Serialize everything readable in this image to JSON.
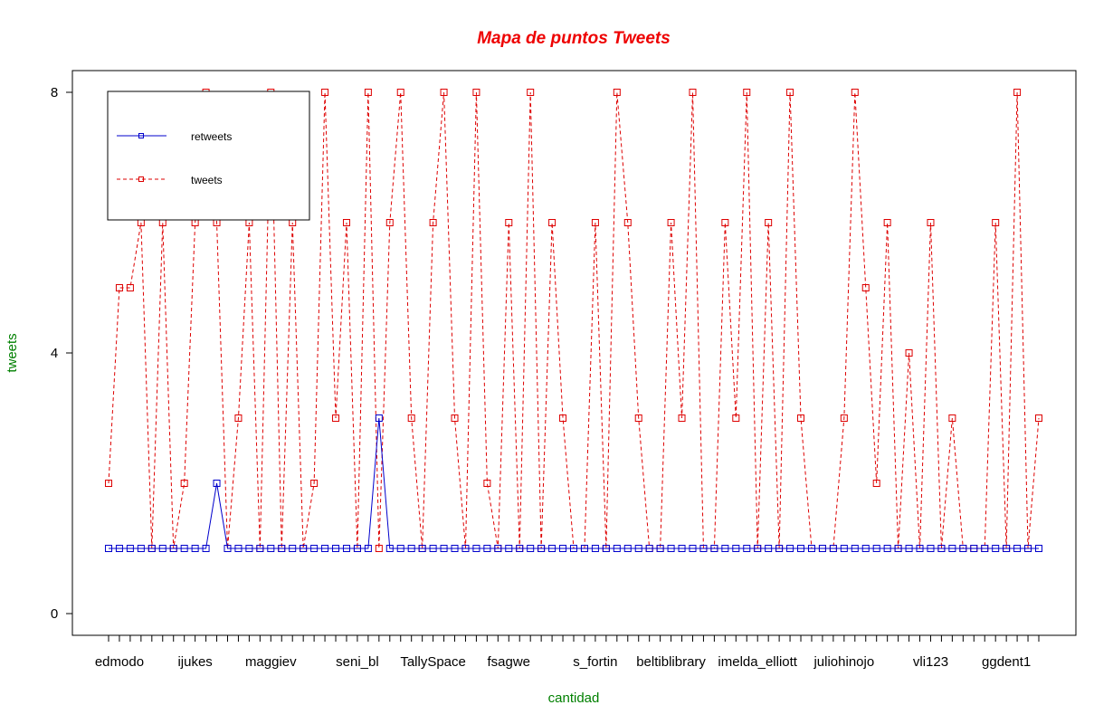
{
  "colors": {
    "title": "#ee0000",
    "axis_label": "#008000",
    "retweets": "#0000cc",
    "tweets": "#dd0000",
    "axis": "#000000"
  },
  "chart_data": {
    "type": "line",
    "title": "Mapa de puntos Tweets",
    "xlabel": "cantidad",
    "ylabel": "tweets",
    "ylim": [
      0,
      8
    ],
    "yticks": [
      0,
      4,
      8
    ],
    "n_points": 87,
    "x_tick_labels": [
      {
        "index": 1,
        "label": "edmodo"
      },
      {
        "index": 8,
        "label": "ijukes"
      },
      {
        "index": 15,
        "label": "maggiev"
      },
      {
        "index": 23,
        "label": "seni_bl"
      },
      {
        "index": 30,
        "label": "TallySpace"
      },
      {
        "index": 37,
        "label": "fsagwe"
      },
      {
        "index": 45,
        "label": "s_fortin"
      },
      {
        "index": 52,
        "label": "beltiblibrary"
      },
      {
        "index": 60,
        "label": "imelda_elliott"
      },
      {
        "index": 68,
        "label": "juliohinojo"
      },
      {
        "index": 76,
        "label": "vli123"
      },
      {
        "index": 83,
        "label": "ggdent1"
      }
    ],
    "legend": {
      "position": "top-left",
      "entries": [
        "retweets",
        "tweets"
      ]
    },
    "series": [
      {
        "name": "retweets",
        "line": "solid",
        "marker": "square",
        "values": [
          1,
          1,
          1,
          1,
          1,
          1,
          1,
          1,
          1,
          1,
          2,
          1,
          1,
          1,
          1,
          1,
          1,
          1,
          1,
          1,
          1,
          1,
          1,
          1,
          1,
          3,
          1,
          1,
          1,
          1,
          1,
          1,
          1,
          1,
          1,
          1,
          1,
          1,
          1,
          1,
          1,
          1,
          1,
          1,
          1,
          1,
          1,
          1,
          1,
          1,
          1,
          1,
          1,
          1,
          1,
          1,
          1,
          1,
          1,
          1,
          1,
          1,
          1,
          1,
          1,
          1,
          1,
          1,
          1,
          1,
          1,
          1,
          1,
          1,
          1,
          1,
          1,
          1,
          1,
          1,
          1,
          1,
          1,
          1,
          1,
          1,
          1
        ]
      },
      {
        "name": "tweets",
        "line": "dashed",
        "marker": "square",
        "values": [
          2,
          5,
          5,
          6,
          1,
          6,
          1,
          2,
          6,
          8,
          6,
          1,
          3,
          6,
          1,
          8,
          1,
          6,
          1,
          2,
          8,
          3,
          6,
          1,
          8,
          1,
          6,
          8,
          3,
          1,
          6,
          8,
          3,
          1,
          8,
          2,
          1,
          6,
          1,
          8,
          1,
          6,
          3,
          1,
          1,
          6,
          1,
          8,
          6,
          3,
          1,
          1,
          6,
          3,
          8,
          1,
          1,
          6,
          3,
          8,
          1,
          6,
          1,
          8,
          3,
          1,
          1,
          1,
          3,
          8,
          5,
          2,
          6,
          1,
          4,
          1,
          6,
          1,
          3,
          1,
          1,
          1,
          6,
          1,
          8,
          1,
          3
        ]
      }
    ]
  }
}
